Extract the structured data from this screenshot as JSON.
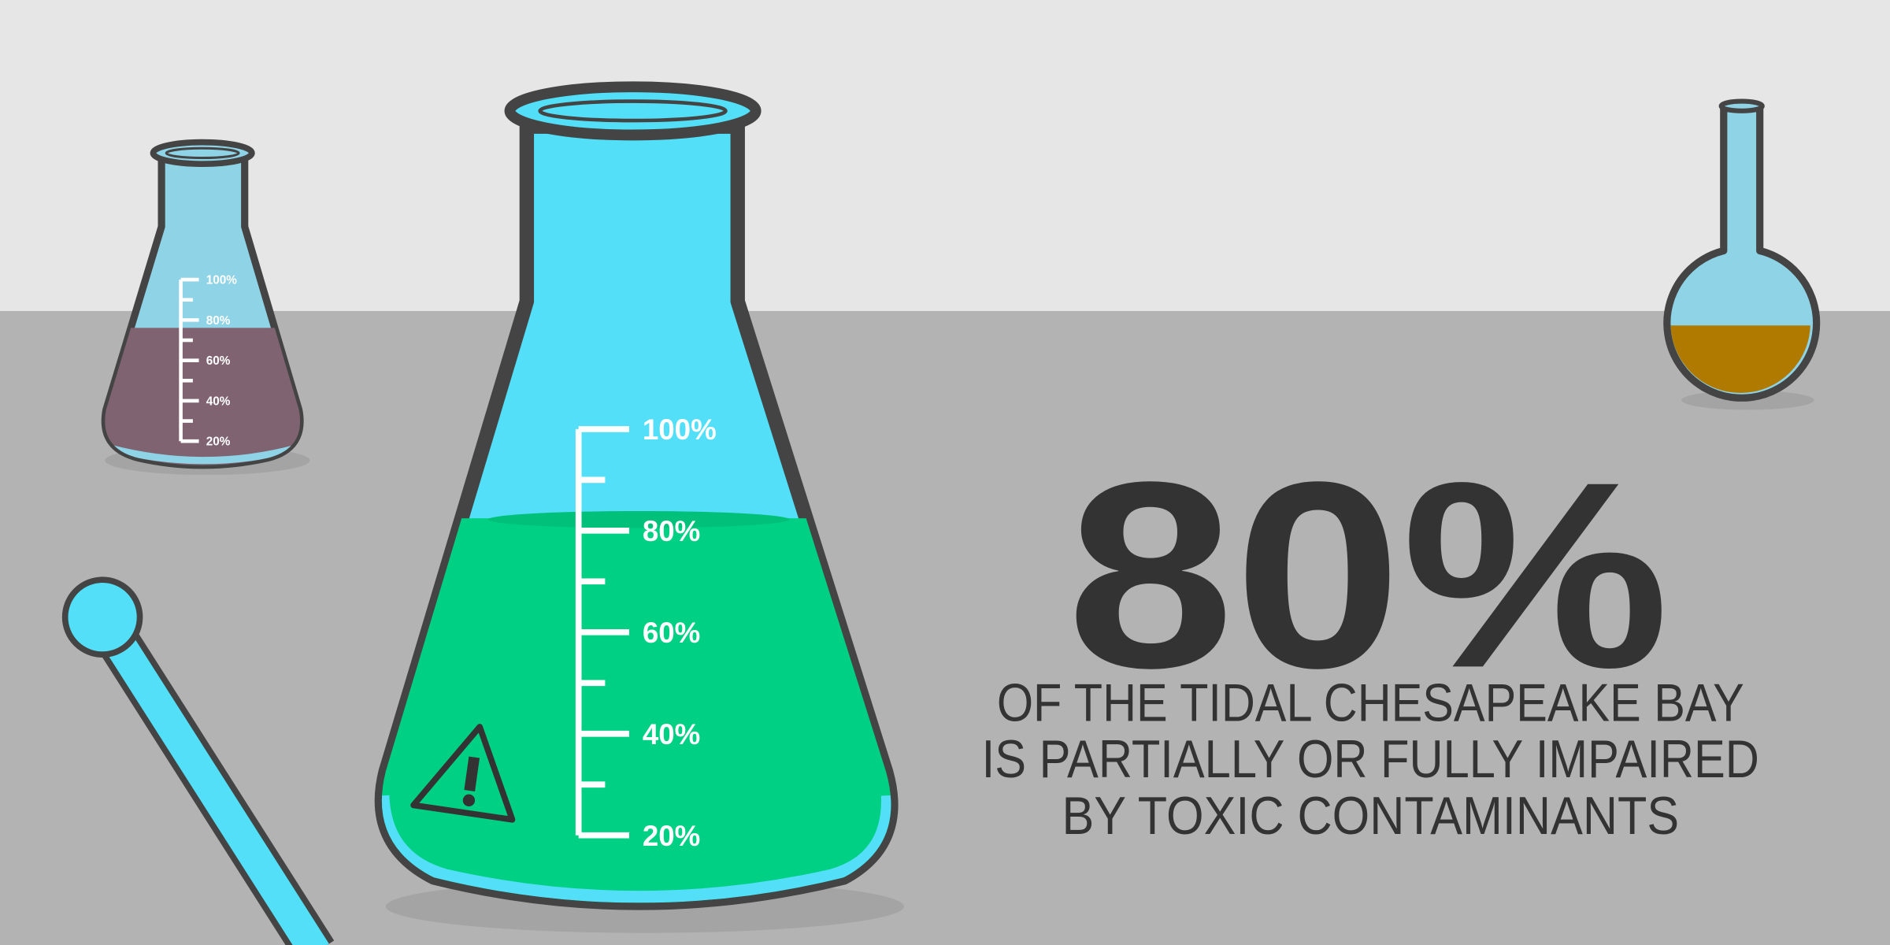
{
  "headline": "80%",
  "description": {
    "lines": [
      "OF THE TIDAL CHESAPEAKE BAY",
      "IS PARTIALLY OR FULLY IMPAIRED",
      "BY TOXIC CONTAMINANTS"
    ]
  },
  "main_flask": {
    "scale_labels": [
      "100%",
      "80%",
      "60%",
      "40%",
      "20%"
    ]
  },
  "small_flask": {
    "scale_labels": [
      "100%",
      "80%",
      "60%",
      "40%",
      "20%"
    ]
  }
}
